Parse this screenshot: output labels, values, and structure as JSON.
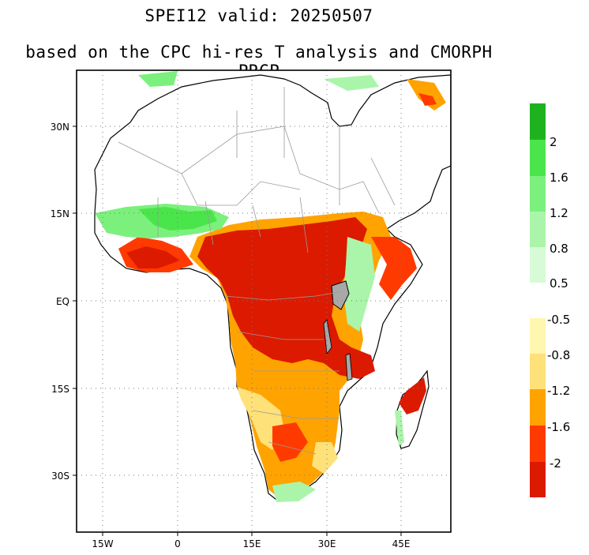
{
  "title": {
    "line1": "SPEI12   valid: 20250507",
    "line2": "based on the CPC hi-res T analysis and CMORPH PRCP"
  },
  "axes": {
    "lon_ticks": [
      "15W",
      "0",
      "15E",
      "30E",
      "45E"
    ],
    "lat_ticks": [
      "30N",
      "15N",
      "EQ",
      "15S",
      "30S"
    ]
  },
  "colorbar": {
    "wet": {
      "colors": [
        "#1fb21f",
        "#4ae54a",
        "#7cf07c",
        "#aaf5aa",
        "#d6fbd6"
      ],
      "labels": [
        "2",
        "1.6",
        "1.2",
        "0.8",
        "0.5"
      ]
    },
    "dry": {
      "colors": [
        "#fff6b0",
        "#ffe17a",
        "#ffa300",
        "#ff3a00",
        "#dc1a00"
      ],
      "labels": [
        "-0.5",
        "-0.8",
        "-1.2",
        "-1.6",
        "-2"
      ]
    }
  },
  "map_colors": {
    "land": "#ffffff",
    "coast": "#000000",
    "borders": "#9a9a9a",
    "grid": "#7a7a7a",
    "lake": "#a8a8a8"
  }
}
